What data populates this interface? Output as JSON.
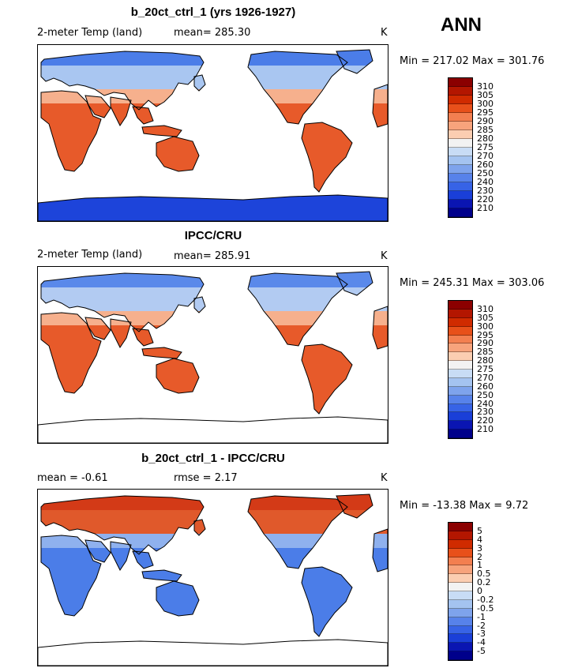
{
  "header": {
    "season": "ANN"
  },
  "panels": [
    {
      "title": "b_20ct_ctrl_1 (yrs 1926-1927)",
      "left_label": "2-meter Temp (land)",
      "stat1": "mean=  285.30",
      "stat2": "",
      "units": "K",
      "minmax": "Min = 217.02 Max = 301.76",
      "antarctica": "filled",
      "colorbar": {
        "labels": [
          "310",
          "305",
          "300",
          "295",
          "290",
          "285",
          "280",
          "275",
          "270",
          "260",
          "250",
          "240",
          "230",
          "220",
          "210"
        ],
        "colors": [
          "#8b0000",
          "#b31600",
          "#d02b00",
          "#e8501a",
          "#f37f50",
          "#f7a37c",
          "#fbcdb1",
          "#f2f2f2",
          "#c8dcf5",
          "#a4c3f0",
          "#7ea3ec",
          "#5782ea",
          "#3763e6",
          "#1a3fd8",
          "#0a15b2",
          "#00008b"
        ]
      },
      "palette": {
        "land": "#e75a2a",
        "north": "#a9c6f1",
        "arctic": "#4b7de8",
        "polar": "#1d44da",
        "mid": "#f6b08d"
      }
    },
    {
      "title": "IPCC/CRU",
      "left_label": "2-meter Temp (land)",
      "stat1": "mean=  285.91",
      "stat2": "",
      "units": "K",
      "minmax": "Min = 245.31 Max = 303.06",
      "antarctica": "outline",
      "colorbar": {
        "labels": [
          "310",
          "305",
          "300",
          "295",
          "290",
          "285",
          "280",
          "275",
          "270",
          "260",
          "250",
          "240",
          "230",
          "220",
          "210"
        ],
        "colors": [
          "#8b0000",
          "#b31600",
          "#d02b00",
          "#e8501a",
          "#f37f50",
          "#f7a37c",
          "#fbcdb1",
          "#f2f2f2",
          "#c8dcf5",
          "#a4c3f0",
          "#7ea3ec",
          "#5782ea",
          "#3763e6",
          "#1a3fd8",
          "#0a15b2",
          "#00008b"
        ]
      },
      "palette": {
        "land": "#e75a2a",
        "north": "#b2cbf2",
        "arctic": "#5a89ea",
        "polar": "#1d44da",
        "mid": "#f6b08d"
      }
    },
    {
      "title": "b_20ct_ctrl_1 - IPCC/CRU",
      "left_label": "mean =   -0.61",
      "stat1": "rmse =    2.17",
      "stat2": "",
      "units": "K",
      "minmax": "Min = -13.38 Max =   9.72",
      "antarctica": "outline",
      "colorbar": {
        "labels": [
          "5",
          "4",
          "3",
          "2",
          "1",
          "0.5",
          "0.2",
          "0",
          "-0.2",
          "-0.5",
          "-1",
          "-2",
          "-3",
          "-4",
          "-5"
        ],
        "colors": [
          "#8b0000",
          "#b31600",
          "#d02b00",
          "#e8501a",
          "#f37f50",
          "#f7a37c",
          "#fbcdb1",
          "#f2f2f2",
          "#c8dcf5",
          "#a4c3f0",
          "#7ea3ec",
          "#5782ea",
          "#3763e6",
          "#1a3fd8",
          "#0a15b2",
          "#00008b"
        ]
      },
      "palette": {
        "land": "#4b7de8",
        "north": "#e0592b",
        "arctic": "#d33a17",
        "polar": "#ffffff",
        "mid": "#8fb1ee"
      }
    }
  ]
}
